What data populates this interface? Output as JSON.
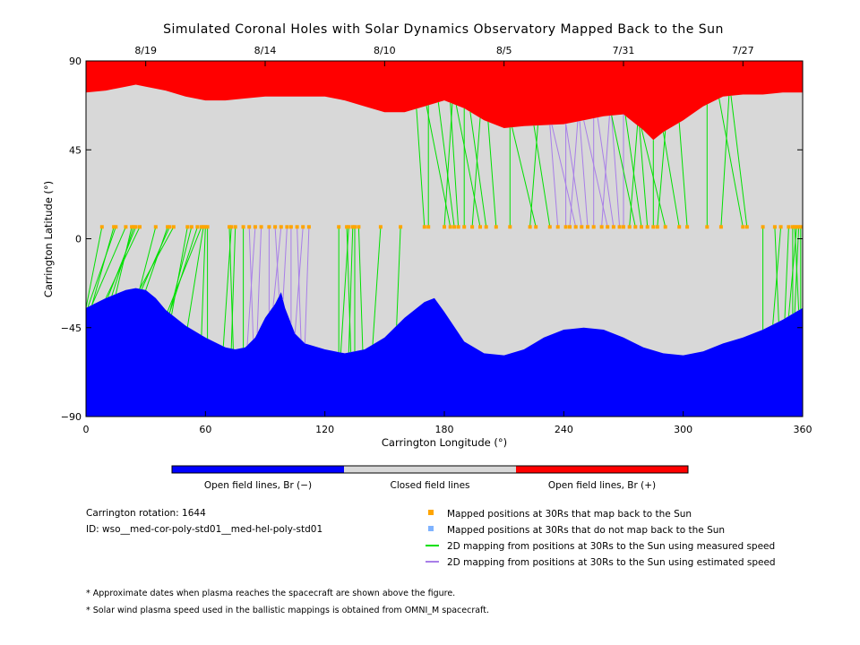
{
  "chart_data": {
    "type": "area",
    "title": "Simulated Coronal Holes with Solar Dynamics Observatory Mapped Back to the Sun",
    "xlabel": "Carrington Longitude (°)",
    "ylabel": "Carrington Latitude (°)",
    "xlim": [
      0,
      360
    ],
    "ylim": [
      -90,
      90
    ],
    "x_ticks": [
      0,
      60,
      120,
      180,
      240,
      300,
      360
    ],
    "y_ticks": [
      90,
      45,
      0,
      -45,
      -90
    ],
    "y_tick_labels": [
      "90",
      "45",
      "0",
      "−45",
      "−90"
    ],
    "top_axis": {
      "labels": [
        {
          "x": 30,
          "label": "8/19"
        },
        {
          "x": 90,
          "label": "8/14"
        },
        {
          "x": 150,
          "label": "8/10"
        },
        {
          "x": 210,
          "label": "8/5"
        },
        {
          "x": 270,
          "label": "7/31"
        },
        {
          "x": 330,
          "label": "7/27"
        }
      ]
    },
    "series": [
      {
        "name": "Open field lines, Br (+)",
        "color": "#ff0000",
        "region": "above",
        "x": [
          0,
          10,
          20,
          25,
          30,
          40,
          50,
          60,
          70,
          80,
          90,
          100,
          110,
          120,
          130,
          140,
          150,
          160,
          170,
          180,
          190,
          200,
          210,
          220,
          240,
          250,
          260,
          270,
          280,
          285,
          290,
          300,
          310,
          320,
          330,
          340,
          350,
          360
        ],
        "y": [
          74,
          75,
          77,
          78,
          77,
          75,
          72,
          70,
          70,
          71,
          72,
          72,
          72,
          72,
          70,
          67,
          64,
          64,
          67,
          70,
          66,
          60,
          56,
          57,
          58,
          60,
          62,
          63,
          55,
          50,
          54,
          60,
          67,
          72,
          73,
          73,
          74,
          74
        ]
      },
      {
        "name": "Open field lines, Br (−)",
        "color": "#0000ff",
        "region": "below",
        "x": [
          0,
          10,
          20,
          25,
          30,
          35,
          40,
          50,
          60,
          70,
          75,
          80,
          85,
          90,
          95,
          98,
          100,
          105,
          110,
          120,
          130,
          140,
          150,
          160,
          170,
          175,
          180,
          190,
          200,
          210,
          220,
          230,
          240,
          250,
          260,
          270,
          280,
          290,
          300,
          310,
          320,
          330,
          340,
          350,
          360
        ],
        "y": [
          -35,
          -30,
          -26,
          -25,
          -26,
          -30,
          -36,
          -44,
          -50,
          -55,
          -56,
          -55,
          -50,
          -40,
          -33,
          -27,
          -35,
          -48,
          -53,
          -56,
          -58,
          -56,
          -50,
          -40,
          -32,
          -30,
          -37,
          -52,
          -58,
          -59,
          -56,
          -50,
          -46,
          -45,
          -46,
          -50,
          -55,
          -58,
          -59,
          -57,
          -53,
          -50,
          -46,
          -41,
          -35
        ]
      },
      {
        "name": "Closed field lines",
        "color": "#d8d8d8",
        "region": "between"
      }
    ],
    "mapped_points_30Rs": {
      "name": "Mapped positions at 30Rs that map back to the Sun",
      "color": "#ffa500",
      "lat": 6,
      "lon": [
        8,
        14,
        15,
        20,
        23,
        24,
        25,
        27,
        35,
        41,
        42,
        44,
        51,
        53,
        56,
        58,
        59,
        60,
        61,
        72,
        73,
        75,
        79,
        82,
        85,
        88,
        92,
        95,
        98,
        101,
        103,
        106,
        109,
        112,
        127,
        131,
        132,
        134,
        135,
        137,
        148,
        158,
        170,
        172,
        180,
        183,
        185,
        187,
        190,
        194,
        198,
        201,
        206,
        213,
        223,
        226,
        233,
        237,
        241,
        243,
        246,
        249,
        252,
        255,
        259,
        262,
        265,
        268,
        270,
        273,
        276,
        279,
        282,
        285,
        287,
        291,
        298,
        302,
        312,
        319,
        330,
        332,
        340,
        346,
        349,
        353,
        355,
        356,
        357,
        358,
        359
      ]
    },
    "unmapped_points_30Rs": {
      "name": "Mapped positions at 30Rs that do not map back to the Sun",
      "color": "#7fb3ff",
      "lat": 6,
      "lon": []
    },
    "mapping_lines": [
      {
        "name": "2D mapping from positions at 30Rs to the Sun using measured speed",
        "color": "#00e000"
      },
      {
        "name": "2D mapping from positions at 30Rs to the Sun using estimated speed",
        "color": "#a87ee8"
      }
    ],
    "colorbar": [
      {
        "label": "Open field lines, Br (−)",
        "color": "#0000ff"
      },
      {
        "label": "Closed field lines",
        "color": "#d8d8d8"
      },
      {
        "label": "Open field lines, Br (+)",
        "color": "#ff0000"
      }
    ]
  },
  "info": {
    "rotation": "Carrington rotation: 1644",
    "id": "ID: wso__med-cor-poly-std01__med-hel-poly-std01"
  },
  "legend": [
    {
      "label": "Mapped positions at 30Rs that map back to the Sun",
      "color": "#ffa500",
      "symbol": "square"
    },
    {
      "label": "Mapped positions at 30Rs that do not map back to the Sun",
      "color": "#7fb3ff",
      "symbol": "square"
    },
    {
      "label": "2D mapping from positions at 30Rs to the Sun using measured speed",
      "color": "#00e000",
      "symbol": "line"
    },
    {
      "label": "2D mapping from positions at 30Rs to the Sun using estimated speed",
      "color": "#a87ee8",
      "symbol": "line"
    }
  ],
  "notes": [
    "* Approximate dates when plasma reaches the spacecraft are shown above the figure.",
    "* Solar wind plasma speed used in the ballistic mappings is obtained from OMNI_M spacecraft."
  ]
}
